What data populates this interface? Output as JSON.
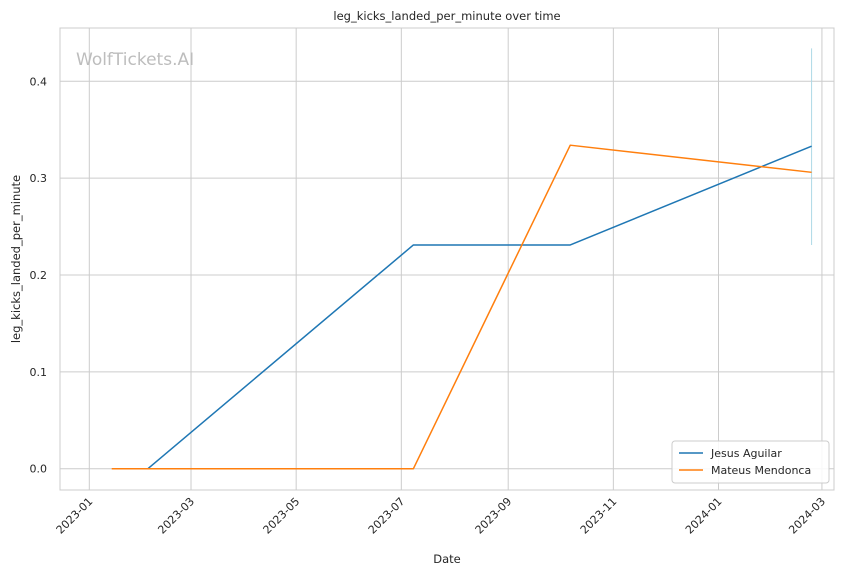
{
  "chart_data": {
    "type": "line",
    "title": "leg_kicks_landed_per_minute over time",
    "xlabel": "Date",
    "ylabel": "leg_kicks_landed_per_minute",
    "watermark": "WolfTickets.AI",
    "x_ticks": [
      "2023-01",
      "2023-03",
      "2023-05",
      "2023-07",
      "2023-09",
      "2023-11",
      "2024-01",
      "2024-03"
    ],
    "y_ticks": [
      0.0,
      0.1,
      0.2,
      0.3,
      0.4
    ],
    "y_tick_labels": [
      "0.0",
      "0.1",
      "0.2",
      "0.3",
      "0.4"
    ],
    "xlim": [
      "2022-12-15",
      "2024-03-08"
    ],
    "ylim": [
      -0.022,
      0.455
    ],
    "grid": true,
    "legend_position": "lower-right",
    "series": [
      {
        "name": "Jesus Aguilar",
        "color": "#1f77b4",
        "x": [
          "2023-02-04",
          "2023-07-08",
          "2023-10-07",
          "2024-02-24"
        ],
        "y": [
          0.0,
          0.231,
          0.231,
          0.333
        ]
      },
      {
        "name": "Mateus Mendonca",
        "color": "#ff7f0e",
        "x": [
          "2023-01-14",
          "2023-07-08",
          "2023-10-07",
          "2024-02-24"
        ],
        "y": [
          0.0,
          0.0,
          0.334,
          0.306
        ]
      }
    ],
    "error_bar": {
      "x": "2024-02-24",
      "y_low": 0.231,
      "y_high": 0.434,
      "color": "#add8e6"
    }
  }
}
